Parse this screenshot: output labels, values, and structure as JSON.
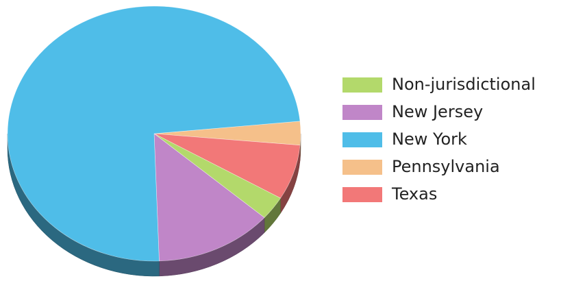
{
  "chart_data": {
    "type": "pie",
    "categories": [
      "Non-jurisdictional",
      "New Jersey",
      "New York",
      "Pennsylvania",
      "Texas"
    ],
    "values": [
      3,
      13,
      74,
      3,
      7
    ],
    "colors": [
      "#b3d96b",
      "#c086c8",
      "#4fbde8",
      "#f5c08a",
      "#f27878"
    ],
    "legend": "right"
  }
}
